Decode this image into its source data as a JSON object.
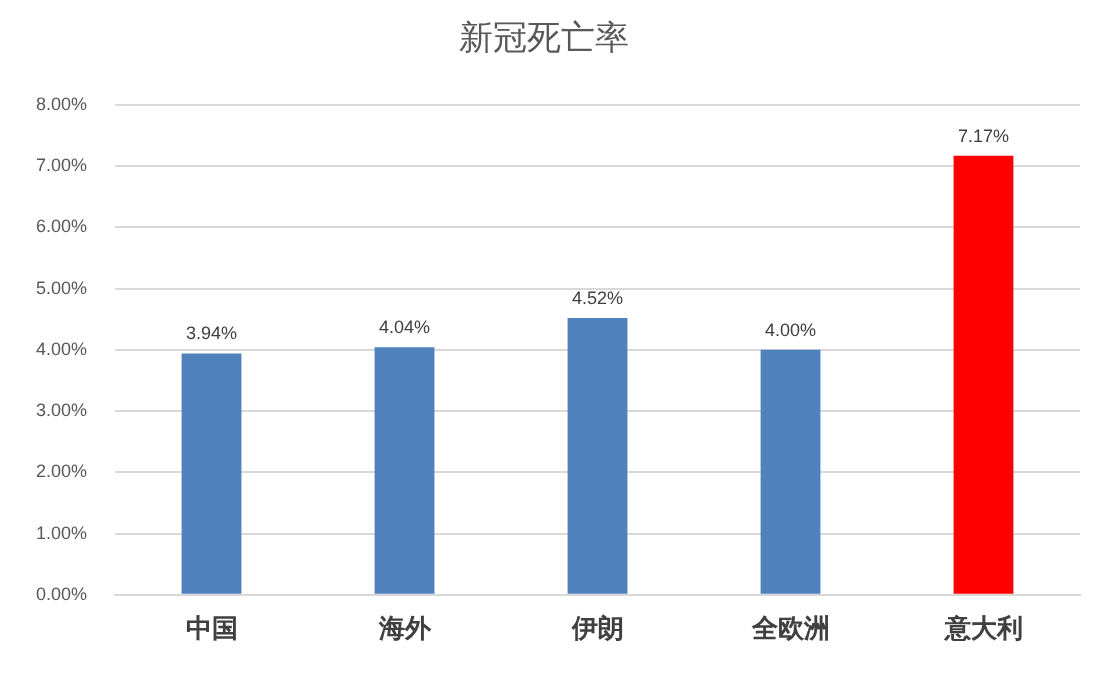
{
  "chart_data": {
    "type": "bar",
    "title": "新冠死亡率",
    "categories": [
      "中国",
      "海外",
      "伊朗",
      "全欧洲",
      "意大利"
    ],
    "values": [
      3.94,
      4.04,
      4.52,
      4.0,
      7.17
    ],
    "colors": [
      "#4f81bd",
      "#4f81bd",
      "#4f81bd",
      "#4f81bd",
      "#ff0000"
    ],
    "value_labels": [
      "3.94%",
      "4.04%",
      "4.52%",
      "4.00%",
      "7.17%"
    ],
    "ylim": [
      0,
      8
    ],
    "yticks": [
      {
        "value": 0,
        "label": "0.00%"
      },
      {
        "value": 1,
        "label": "1.00%"
      },
      {
        "value": 2,
        "label": "2.00%"
      },
      {
        "value": 3,
        "label": "3.00%"
      },
      {
        "value": 4,
        "label": "4.00%"
      },
      {
        "value": 5,
        "label": "5.00%"
      },
      {
        "value": 6,
        "label": "6.00%"
      },
      {
        "value": 7,
        "label": "7.00%"
      },
      {
        "value": 8,
        "label": "8.00%"
      }
    ],
    "grid": "y",
    "legend": false
  }
}
